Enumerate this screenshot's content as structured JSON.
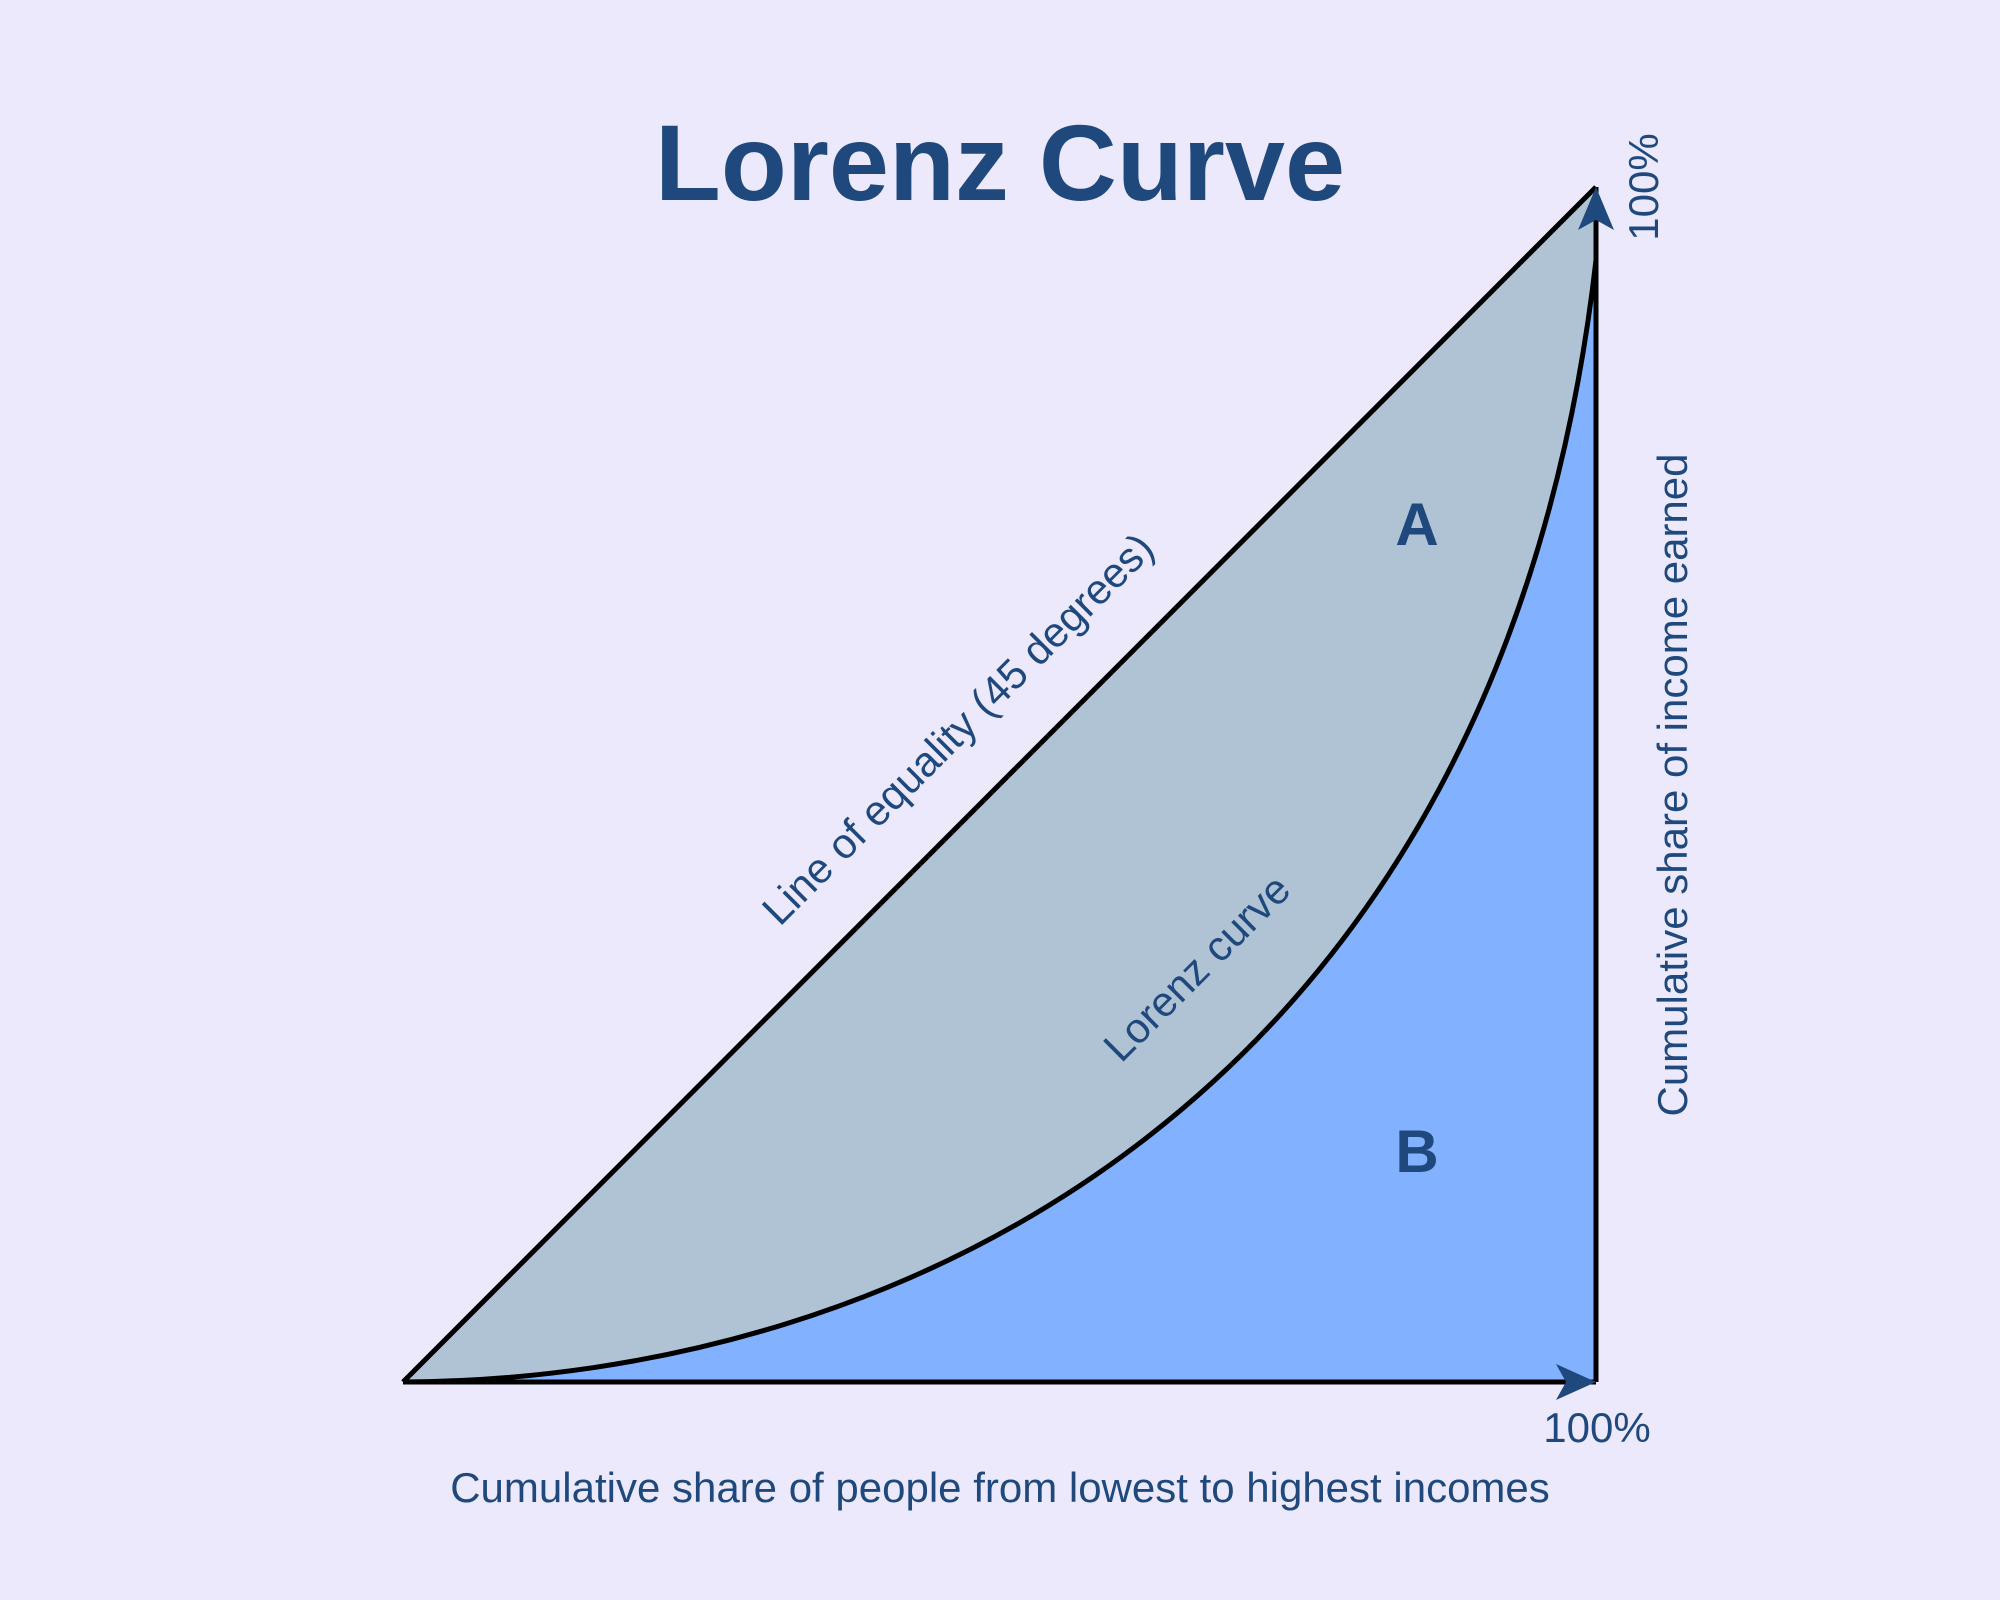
{
  "title": "Lorenz Curve",
  "labels": {
    "x_axis": "Cumulative share of people from lowest to highest incomes",
    "y_axis": "Cumulative share of income earned",
    "x_max": "100%",
    "y_max": "100%",
    "equality_line": "Line of equality (45 degrees)",
    "lorenz_curve": "Lorenz curve",
    "region_a": "A",
    "region_b": "B"
  },
  "colors": {
    "background": "#ECE9FC",
    "text": "#1F497D",
    "region_a_fill": "#B0C3D5",
    "region_b_fill": "#82B1FF",
    "outline": "#000000",
    "arrow": "#1F497D"
  }
}
